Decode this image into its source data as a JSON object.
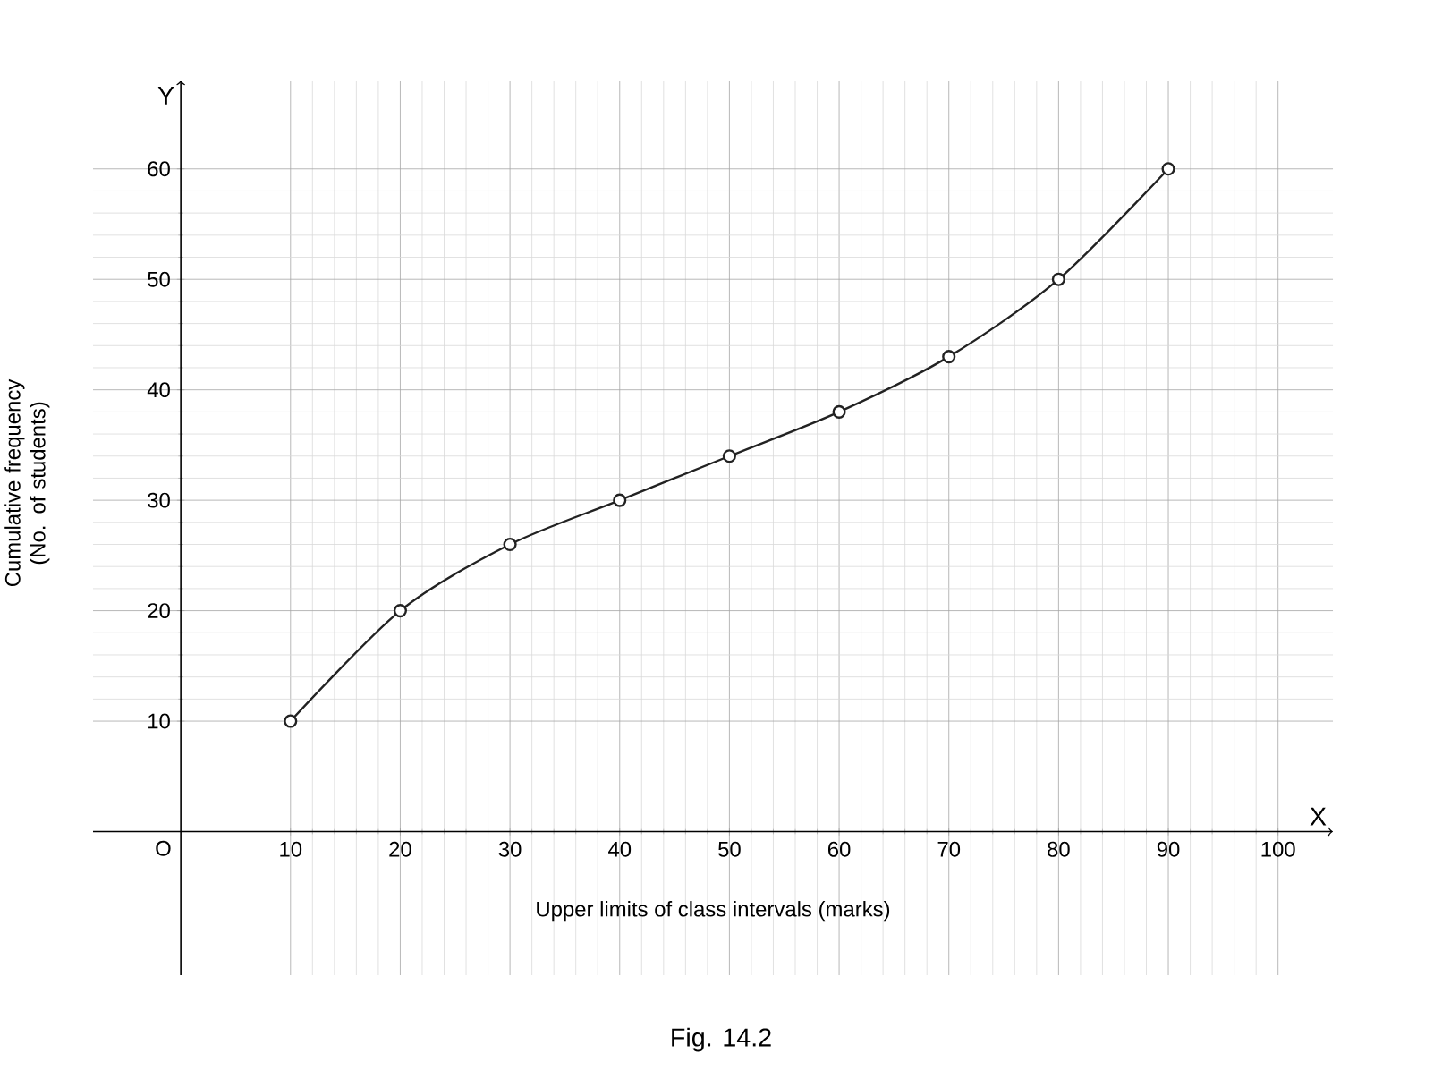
{
  "chart_data": {
    "type": "line",
    "xlabel": "Upper limits of class intervals (marks)",
    "ylabel": "Cumulative frequency (No. of students)",
    "x": [
      10,
      20,
      30,
      40,
      50,
      60,
      70,
      80,
      90
    ],
    "series": [
      {
        "color": "#222222",
        "values": [
          10,
          20,
          26,
          30,
          34,
          38,
          43,
          50,
          60
        ]
      }
    ],
    "xlim": [
      -8,
      105
    ],
    "ylim": [
      -13,
      68
    ],
    "xticks": [
      10,
      20,
      30,
      40,
      50,
      60,
      70,
      80,
      90,
      100
    ],
    "yticks": [
      10,
      20,
      30,
      40,
      50,
      60
    ],
    "grid": true,
    "marker": "circle",
    "line_style": "solid",
    "annotations": [
      "X",
      "Y",
      "O",
      "Fig. 14.2"
    ]
  }
}
